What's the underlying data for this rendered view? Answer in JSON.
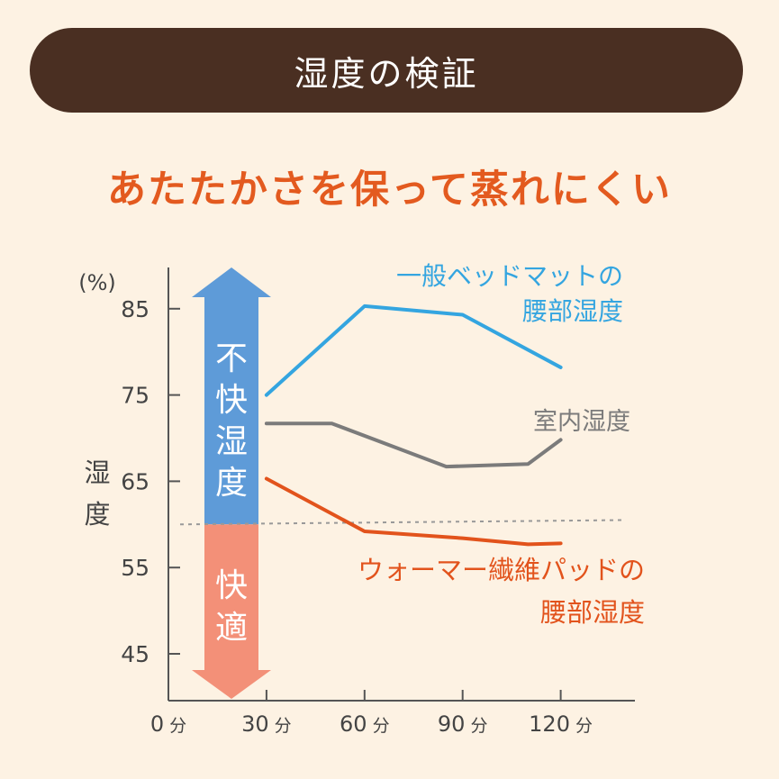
{
  "header": {
    "title": "湿度の検証"
  },
  "subtitle": "あたたかさを保って蒸れにくい",
  "chart_data": {
    "type": "line",
    "yunit": "(%)",
    "ylabel": "湿度",
    "ylim": [
      40,
      90
    ],
    "yticks": [
      45,
      55,
      65,
      75,
      85
    ],
    "xlim": [
      0,
      135
    ],
    "xticks": [
      {
        "value": 0,
        "label": "0",
        "unit": "分"
      },
      {
        "value": 30,
        "label": "30",
        "unit": "分"
      },
      {
        "value": 60,
        "label": "60",
        "unit": "分"
      },
      {
        "value": 90,
        "label": "90",
        "unit": "分"
      },
      {
        "value": 120,
        "label": "120",
        "unit": "分"
      }
    ],
    "threshold": 60,
    "zones": {
      "upper": {
        "label": "不快湿度",
        "color": "#5e9bd8"
      },
      "lower": {
        "label": "快適",
        "color": "#f39078"
      }
    },
    "series": [
      {
        "name": "一般ベッドマットの腰部湿度",
        "name_lines": [
          "一般ベッドマットの",
          "腰部湿度"
        ],
        "color": "#34a5e0",
        "points": [
          [
            30,
            75
          ],
          [
            60,
            85.3
          ],
          [
            90,
            84.3
          ],
          [
            120,
            78.2
          ]
        ]
      },
      {
        "name": "室内湿度",
        "name_lines": [
          "室内湿度"
        ],
        "color": "#7b7b7b",
        "points": [
          [
            30,
            71.7
          ],
          [
            50,
            71.7
          ],
          [
            85,
            66.7
          ],
          [
            110,
            67.0
          ],
          [
            120,
            69.8
          ]
        ]
      },
      {
        "name": "ウォーマー繊維パッドの腰部湿度",
        "name_lines": [
          "ウォーマー繊維パッドの",
          "腰部湿度"
        ],
        "color": "#e2531c",
        "points": [
          [
            30,
            65.3
          ],
          [
            60,
            59.2
          ],
          [
            90,
            58.4
          ],
          [
            110,
            57.7
          ],
          [
            120,
            57.8
          ]
        ]
      }
    ]
  }
}
